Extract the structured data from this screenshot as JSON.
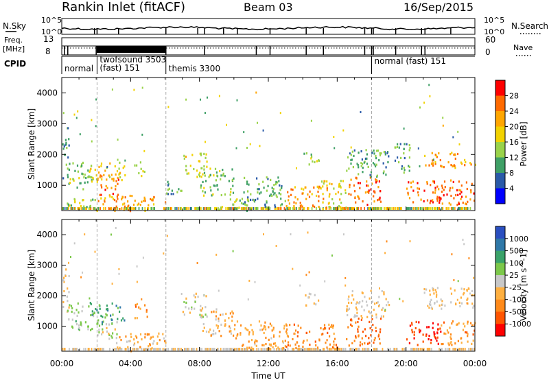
{
  "header": {
    "station": "Rankin Inlet (fitACF)",
    "beam": "Beam 03",
    "date": "16/Sep/2015"
  },
  "top_panels": {
    "nsky_label": "N.Sky",
    "nsearch_label": "N.Search",
    "nsky_axis": [
      "10^5",
      "10^0"
    ],
    "nsearch_axis": [
      "10^5",
      "10^0"
    ],
    "freq_label_1": "Freq.",
    "freq_label_2": "[MHz]",
    "freq_axis": [
      "13",
      "8"
    ],
    "nave_label": "Nave",
    "nave_axis": [
      "60",
      "0"
    ]
  },
  "cpid": {
    "label": "CPID",
    "segments": [
      {
        "text": "normal",
        "start_ut": 0.0
      },
      {
        "text": "twofsound 3503",
        "start_ut": 2.05
      },
      {
        "text": "(fast) 151",
        "start_ut": 2.05
      },
      {
        "text": "themis 3300",
        "start_ut": 6.05
      },
      {
        "text": "normal (fast) 151",
        "start_ut": 18.0
      }
    ]
  },
  "chart_data": [
    {
      "type": "heatmap",
      "name": "power",
      "ylabel": "Slant Range [km]",
      "xlim": [
        0,
        24
      ],
      "ylim": [
        180,
        4500
      ],
      "y_ticks": [
        1000,
        2000,
        3000,
        4000
      ],
      "y_tick_labels": [
        "1000",
        "2000",
        "3000",
        "4000"
      ],
      "colorbar_label": "Power [dB]",
      "colorbar_ticks": [
        "28",
        "24",
        "20",
        "16",
        "12",
        "8",
        "4"
      ],
      "colorbar_colors": [
        "#ff0000",
        "#ff6a00",
        "#ffa600",
        "#f2d200",
        "#9ad34a",
        "#3fa066",
        "#2a5aa8",
        "#0000ff"
      ],
      "data_range": [
        0,
        30
      ],
      "regions": [
        {
          "t0": 0.0,
          "t1": 0.4,
          "r0": 1200,
          "r1": 3000,
          "value": 10
        },
        {
          "t0": 0.3,
          "t1": 1.8,
          "r0": 900,
          "r1": 1800,
          "value": 14
        },
        {
          "t0": 0.2,
          "t1": 2.0,
          "r0": 200,
          "r1": 600,
          "value": 16
        },
        {
          "t0": 1.6,
          "t1": 3.7,
          "r0": 1200,
          "r1": 1800,
          "value": 20
        },
        {
          "t0": 2.0,
          "t1": 3.3,
          "r0": 700,
          "r1": 1400,
          "value": 26
        },
        {
          "t0": 2.0,
          "t1": 6.0,
          "r0": 200,
          "r1": 700,
          "value": 24
        },
        {
          "t0": 4.2,
          "t1": 4.8,
          "r0": 1300,
          "r1": 1800,
          "value": 16
        },
        {
          "t0": 6.0,
          "t1": 7.0,
          "r0": 700,
          "r1": 1200,
          "value": 10
        },
        {
          "t0": 7.0,
          "t1": 8.4,
          "r0": 1300,
          "r1": 2100,
          "value": 18
        },
        {
          "t0": 8.0,
          "t1": 10.0,
          "r0": 700,
          "r1": 1600,
          "value": 14
        },
        {
          "t0": 9.0,
          "t1": 11.0,
          "r0": 200,
          "r1": 600,
          "value": 14
        },
        {
          "t0": 10.5,
          "t1": 13.0,
          "r0": 300,
          "r1": 1300,
          "value": 12
        },
        {
          "t0": 13.0,
          "t1": 15.5,
          "r0": 300,
          "r1": 1000,
          "value": 24
        },
        {
          "t0": 14.0,
          "t1": 15.0,
          "r0": 1700,
          "r1": 2100,
          "value": 16
        },
        {
          "t0": 15.0,
          "t1": 16.5,
          "r0": 200,
          "r1": 1200,
          "value": 18
        },
        {
          "t0": 16.5,
          "t1": 18.5,
          "r0": 400,
          "r1": 1300,
          "value": 28
        },
        {
          "t0": 16.5,
          "t1": 19.0,
          "r0": 1300,
          "r1": 2200,
          "value": 12
        },
        {
          "t0": 19.2,
          "t1": 20.2,
          "r0": 1400,
          "r1": 2400,
          "value": 12
        },
        {
          "t0": 20.0,
          "t1": 24.0,
          "r0": 400,
          "r1": 1200,
          "value": 28
        },
        {
          "t0": 21.0,
          "t1": 24.0,
          "r0": 1600,
          "r1": 2100,
          "value": 24
        }
      ]
    },
    {
      "type": "heatmap",
      "name": "velocity",
      "ylabel": "Slant Range [km]",
      "xlabel": "Time UT",
      "xlim": [
        0,
        24
      ],
      "ylim": [
        180,
        4500
      ],
      "x_ticks": [
        0,
        4,
        8,
        12,
        16,
        20,
        24
      ],
      "x_tick_labels": [
        "00:00",
        "04:00",
        "08:00",
        "12:00",
        "16:00",
        "20:00",
        "00:00"
      ],
      "y_ticks": [
        1000,
        2000,
        3000,
        4000
      ],
      "y_tick_labels": [
        "1000",
        "2000",
        "3000",
        "4000"
      ],
      "colorbar_label": "Velocity [m s^-1]",
      "colorbar_ticks": [
        "1000",
        "500",
        "100",
        "25",
        "-25",
        "-100",
        "-500",
        "-1000"
      ],
      "colorbar_colors": [
        "#2a4fc0",
        "#2f78a8",
        "#3aa36a",
        "#7cc84a",
        "#c8c8c8",
        "#ffb040",
        "#ff8a1a",
        "#ff5500",
        "#ff0000"
      ],
      "data_range": [
        -1000,
        1000
      ],
      "regions": [
        {
          "t0": 0.0,
          "t1": 0.4,
          "r0": 1500,
          "r1": 2900,
          "value": 0
        },
        {
          "t0": 0.3,
          "t1": 1.8,
          "r0": 900,
          "r1": 1800,
          "value": 300
        },
        {
          "t0": 1.6,
          "t1": 3.7,
          "r0": 1100,
          "r1": 1800,
          "value": 600
        },
        {
          "t0": 2.0,
          "t1": 3.3,
          "r0": 600,
          "r1": 1200,
          "value": 150
        },
        {
          "t0": 3.0,
          "t1": 6.0,
          "r0": 200,
          "r1": 800,
          "value": -150
        },
        {
          "t0": 4.2,
          "t1": 5.0,
          "r0": 1300,
          "r1": 1800,
          "value": -300
        },
        {
          "t0": 7.0,
          "t1": 8.4,
          "r0": 1300,
          "r1": 2100,
          "value": 150
        },
        {
          "t0": 8.0,
          "t1": 10.0,
          "r0": 700,
          "r1": 1600,
          "value": -150
        },
        {
          "t0": 10.0,
          "t1": 13.0,
          "r0": 300,
          "r1": 1200,
          "value": -200
        },
        {
          "t0": 13.0,
          "t1": 16.0,
          "r0": 300,
          "r1": 1100,
          "value": -400
        },
        {
          "t0": 14.0,
          "t1": 15.0,
          "r0": 1700,
          "r1": 2100,
          "value": 0
        },
        {
          "t0": 16.5,
          "t1": 18.5,
          "r0": 400,
          "r1": 1300,
          "value": -500
        },
        {
          "t0": 16.5,
          "t1": 19.0,
          "r0": 1300,
          "r1": 2200,
          "value": 0
        },
        {
          "t0": 20.0,
          "t1": 22.0,
          "r0": 400,
          "r1": 1200,
          "value": -800
        },
        {
          "t0": 22.0,
          "t1": 24.0,
          "r0": 400,
          "r1": 1200,
          "value": -300
        },
        {
          "t0": 21.0,
          "t1": 24.0,
          "r0": 1600,
          "r1": 2300,
          "value": 0
        }
      ]
    }
  ]
}
